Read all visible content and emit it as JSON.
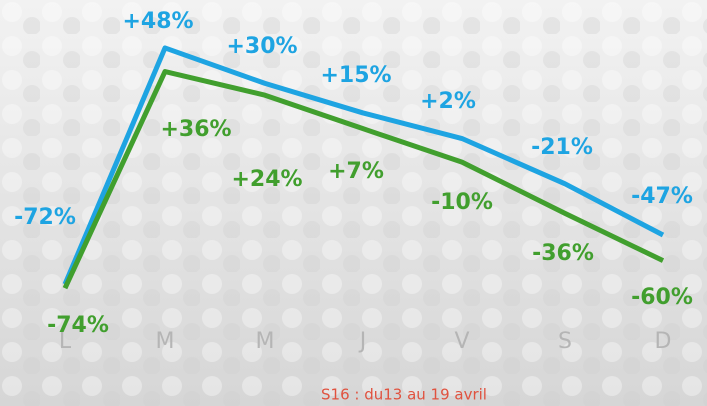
{
  "chart_data": {
    "type": "line",
    "caption": "S16 : du13 au 19 avril",
    "categories": [
      "L",
      "M",
      "M",
      "J",
      "V",
      "S",
      "D"
    ],
    "ylim": [
      -80,
      50
    ],
    "series": [
      {
        "name": null,
        "color": "#1ea4e2",
        "values": [
          -72,
          48,
          30,
          15,
          2,
          -21,
          -47
        ],
        "value_labels": [
          "-72%",
          "+48%",
          "+30%",
          "+15%",
          "+2%",
          "-21%",
          "-47%"
        ]
      },
      {
        "name": null,
        "color": "#419f2e",
        "values": [
          -74,
          36,
          24,
          7,
          -10,
          -36,
          -60
        ],
        "value_labels": [
          "-74%",
          "+36%",
          "+24%",
          "+7%",
          "-10%",
          "-36%",
          "-60%"
        ]
      }
    ]
  }
}
